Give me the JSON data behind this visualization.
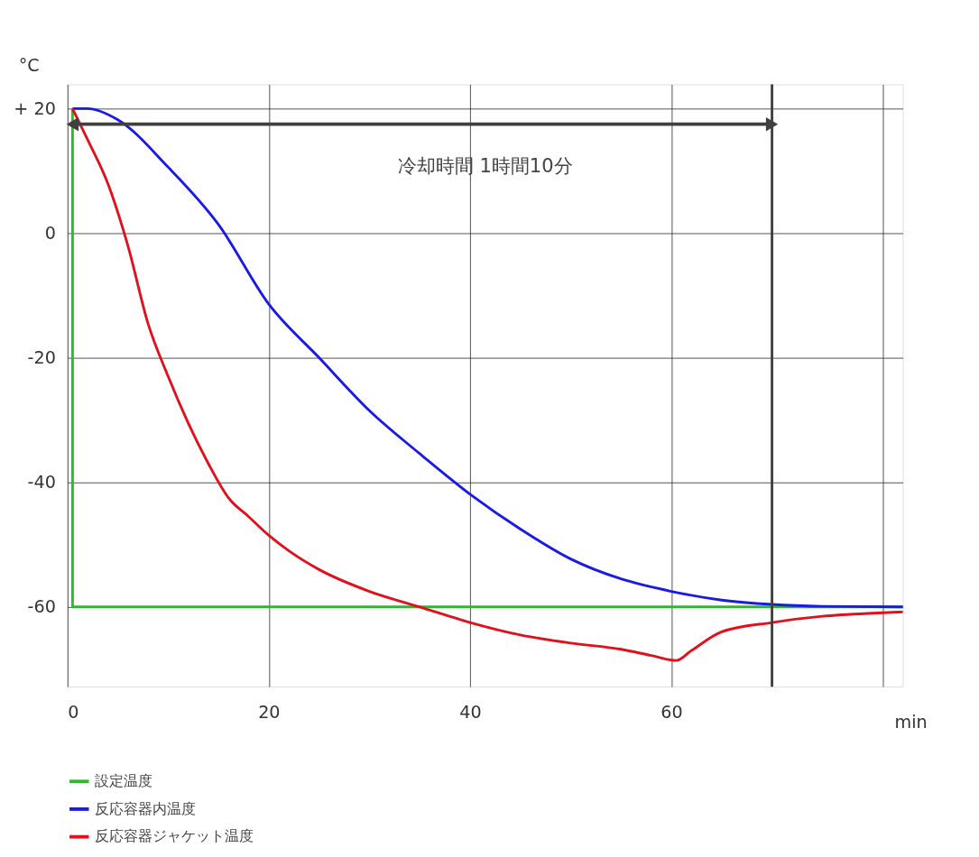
{
  "chart_data": {
    "type": "line",
    "xlabel": "min",
    "ylabel": "°C",
    "xlim": [
      0,
      83
    ],
    "ylim": [
      -72.8,
      23.9
    ],
    "xticks": [
      0,
      20,
      40,
      60,
      {
        "value": 81,
        "label": null
      }
    ],
    "yticks": [
      {
        "value": 20,
        "label": "+ 20"
      },
      0,
      -20,
      -40,
      -60
    ],
    "grid": true,
    "legend": "bottom",
    "line_style": "solid",
    "series": [
      {
        "name": "設定温度",
        "color": "#22c022",
        "x": [
          0.5,
          0.5,
          83
        ],
        "values": [
          20,
          -60,
          -60
        ]
      },
      {
        "name": "反応容器内温度",
        "color": "#1a1ae6",
        "x": [
          0.5,
          2,
          5,
          10,
          15,
          20,
          25,
          30,
          35,
          40,
          45,
          50,
          55,
          60,
          65,
          70,
          75,
          83
        ],
        "values": [
          20,
          20,
          18.2,
          10.6,
          1.4,
          -11.4,
          -20,
          -28.5,
          -35.4,
          -41.9,
          -47.5,
          -52.3,
          -55.5,
          -57.5,
          -58.9,
          -59.6,
          -59.9,
          -60
        ]
      },
      {
        "name": "反応容器ジャケット温度",
        "color": "#e0101c",
        "x": [
          0.5,
          2,
          4,
          6,
          8,
          10,
          12,
          14,
          16,
          18,
          20,
          22,
          25,
          30,
          35,
          40,
          45,
          50,
          55,
          58,
          60.5,
          62,
          65,
          70,
          75,
          80,
          83
        ],
        "values": [
          20,
          15,
          8,
          -2,
          -14.5,
          -23,
          -30.5,
          -37,
          -42.5,
          -45.5,
          -48.5,
          -51,
          -54,
          -57.5,
          -60,
          -62.5,
          -64.5,
          -65.8,
          -66.8,
          -67.8,
          -68.6,
          -67,
          -64,
          -62.5,
          -61.5,
          -61,
          -60.8
        ]
      },
      {
        "type": "line",
        "color": "#404040",
        "marker": "triangle",
        "x": [
          0.5,
          70
        ],
        "values": [
          17.5,
          17.5
        ]
      }
    ],
    "ref_lines": [
      {
        "axis": "x",
        "value": 70,
        "color": "#404040"
      }
    ],
    "annotations": [
      "冷却時間 1時間10分"
    ]
  }
}
